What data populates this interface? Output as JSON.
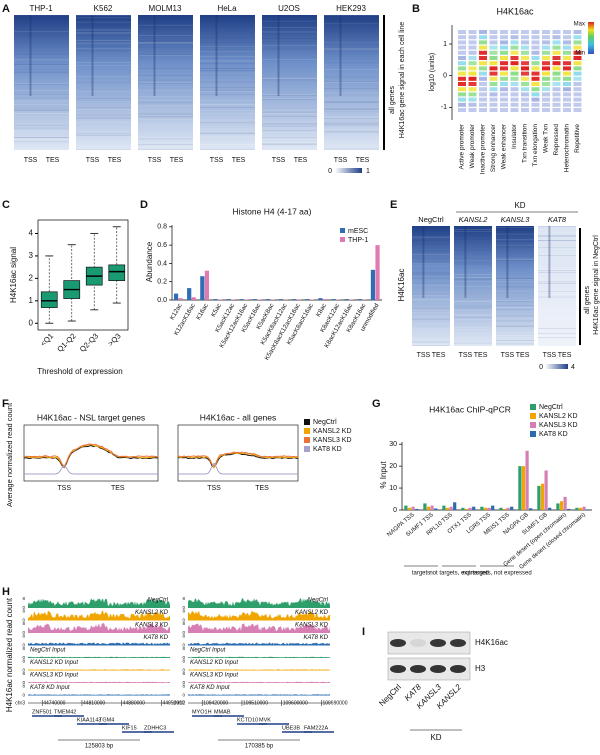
{
  "panels": {
    "A": {
      "letter": "A",
      "columns": [
        "THP-1",
        "K562",
        "MOLM13",
        "HeLa",
        "U2OS",
        "HEK293"
      ],
      "ticks": [
        "TSS",
        "TES"
      ],
      "scale": [
        0,
        1
      ],
      "side": [
        "all genes",
        "H4K16ac gene signal in each cell line"
      ]
    },
    "B": {
      "letter": "B",
      "title": "H4K16ac",
      "ylabel": "log10 (units)",
      "ylim": [
        -1.4,
        1.6
      ],
      "yticks": [
        1,
        0,
        -1
      ],
      "legend": [
        "Max",
        "Min"
      ],
      "categories": [
        "Active promoter",
        "Weak promoter",
        "Inactive promoter",
        "Strong enhancer",
        "Weak enhancer",
        "Insulator",
        "Txn transition",
        "Txn elongation",
        "Weak Txn",
        "Repressed",
        "Heterochromatin",
        "Repetitive"
      ]
    },
    "C": {
      "letter": "C"
    },
    "D": {
      "letter": "D"
    },
    "E": {
      "letter": "E",
      "kd": "KD",
      "columns": [
        "NegCtrl",
        "KANSL2",
        "KANSL3",
        "KAT8"
      ],
      "ylabel": "H4K16ac",
      "ticks": [
        "TSS",
        "TES"
      ],
      "scale": [
        0,
        4
      ],
      "side": [
        "all genes",
        "H4K16ac gene signal in NegCtrl"
      ]
    },
    "F": {
      "letter": "F",
      "titles": [
        "H4K16ac - NSL target genes",
        "H4K16ac - all genes"
      ],
      "ylabel": "Average normalized read count",
      "ticks": [
        "TSS",
        "TES"
      ],
      "series": [
        {
          "name": "NegCtrl",
          "color": "#111111"
        },
        {
          "name": "KANSL2 KD",
          "color": "#f0a500"
        },
        {
          "name": "KANSL3 KD",
          "color": "#e8743b"
        },
        {
          "name": "KAT8 KD",
          "color": "#aaa0cc"
        }
      ]
    },
    "G": {
      "letter": "G"
    },
    "H": {
      "letter": "H",
      "ylabel": "H4K16ac normalized read count",
      "tracks": [
        {
          "name": "NegCtrl",
          "color": "#2e9e6b"
        },
        {
          "name": "KANSL2 KD",
          "color": "#f0a500"
        },
        {
          "name": "KANSL3 KD",
          "color": "#d67fb5"
        },
        {
          "name": "KAT8 KD",
          "color": "#2b6cb0"
        },
        {
          "name": "NegCtrl Input",
          "color": "#2e9e6b"
        },
        {
          "name": "KANSL2 KD Input",
          "color": "#f0a500"
        },
        {
          "name": "KANSL3 KD Input",
          "color": "#d67fb5"
        },
        {
          "name": "KAT8 KD Input",
          "color": "#2b6cb0"
        }
      ],
      "track_scale": [
        8,
        0
      ],
      "loci": [
        {
          "chr": "chr3",
          "coords": [
            44740000,
            44810000,
            44880000,
            44950000
          ],
          "genes": [
            "ZNF501",
            "KIAA1143",
            "KIF15",
            "TMEM42",
            "TGM4",
            "ZDHHC3"
          ],
          "span": "125803 bp"
        },
        {
          "chr": "chr12",
          "coords": [
            109420000,
            109510000,
            109600000,
            109690000
          ],
          "genes": [
            "MYO1H",
            "KCTD10",
            "UBE3B",
            "MMAB",
            "MVK",
            "FAM222A"
          ],
          "span": "170385 bp"
        }
      ]
    },
    "I": {
      "letter": "I",
      "bands": [
        "H4K16ac",
        "H3"
      ],
      "lanes": [
        "NegCtrl",
        "KAT8",
        "KANSL3",
        "KANSL2"
      ],
      "kd": "KD"
    }
  },
  "chart_data": [
    {
      "type": "box",
      "ylabel": "H4K16ac signal",
      "xlabel": "Threshold of expression",
      "categories": [
        "<Q1",
        "Q1-Q2",
        "Q2-Q3",
        ">Q3"
      ],
      "stats": [
        [
          0,
          0.7,
          1.0,
          1.4,
          3.0
        ],
        [
          0.1,
          1.1,
          1.5,
          1.9,
          3.5
        ],
        [
          0.6,
          1.7,
          2.1,
          2.5,
          4.0
        ],
        [
          0.9,
          1.9,
          2.3,
          2.6,
          4.3
        ]
      ],
      "color": "#1a9a73",
      "ylim": [
        -0.3,
        4.6
      ],
      "yticks": [
        0,
        1,
        2,
        3,
        4
      ]
    },
    {
      "type": "bar",
      "title": "Histone H4 (4-17 aa)",
      "ylabel": "Abundance",
      "categories": [
        "K12ac",
        "K12acK16ac",
        "K16ac",
        "K5ac",
        "K5acK12ac",
        "K5acK12acK16ac",
        "K5acK16ac",
        "K5acK8ac",
        "K5acK8acK12ac",
        "K5acK8acK12acK16ac",
        "K5acK8acK16ac",
        "K8ac",
        "K8acK12ac",
        "K8acK12acK16ac",
        "K8acK16ac",
        "unmodified"
      ],
      "series": [
        {
          "name": "mESC",
          "color": "#2f6db5",
          "values": [
            0.07,
            0.13,
            0.26,
            0.01,
            0.01,
            0.01,
            0.01,
            0.01,
            0.01,
            0.01,
            0.01,
            0.02,
            0.01,
            0.01,
            0.01,
            0.33
          ]
        },
        {
          "name": "THP-1",
          "color": "#e07ab0",
          "values": [
            0.02,
            0.03,
            0.32,
            0.005,
            0.005,
            0.005,
            0.005,
            0.005,
            0.005,
            0.005,
            0.005,
            0.01,
            0.005,
            0.005,
            0.005,
            0.6
          ]
        }
      ],
      "ylim": [
        0,
        0.82
      ],
      "yticks": [
        {
          "value": 0,
          "label": "0.0"
        },
        {
          "value": 0.2,
          "label": "0.2"
        },
        {
          "value": 0.4,
          "label": "0.4"
        },
        {
          "value": 0.6,
          "label": "0.6"
        },
        {
          "value": 0.8,
          "label": "0.8"
        }
      ]
    },
    {
      "type": "bar",
      "title": "H4K16ac ChIP-qPCR",
      "ylabel": "% Input",
      "categories": [
        "NAGPA TSS",
        "SUMF1 TSS",
        "RPL10 TSS",
        "OTX1 TSS",
        "LGR5 TSS",
        "MEIS1 TSS",
        "NAGPA GB",
        "SUMF1 GB",
        "Gene desert (open chromatin)",
        "Gene desert (closed chromatin)"
      ],
      "groups": [
        {
          "name": "targets",
          "categories": [
            "NAGPA TSS",
            "SUMF1 TSS"
          ]
        },
        {
          "name": "not targets, expressed",
          "categories": [
            "RPL10 TSS",
            "OTX1 TSS"
          ]
        },
        {
          "name": "not targets, not expressed",
          "categories": [
            "LGR5 TSS",
            "MEIS1 TSS"
          ]
        }
      ],
      "series": [
        {
          "name": "NegCtrl",
          "color": "#2e9e6b",
          "values": [
            2,
            3,
            2,
            1,
            1.5,
            1,
            20,
            11,
            3,
            1
          ]
        },
        {
          "name": "KANSL2 KD",
          "color": "#f0a500",
          "values": [
            1,
            1.5,
            1,
            0.5,
            1,
            0.5,
            20,
            12,
            4,
            1
          ]
        },
        {
          "name": "KANSL3 KD",
          "color": "#d67fb5",
          "values": [
            1.5,
            2,
            1.5,
            1,
            1,
            1,
            27,
            18,
            6,
            1.5
          ]
        },
        {
          "name": "KAT8 KD",
          "color": "#2b6cb0",
          "values": [
            0.5,
            0.7,
            3.5,
            1.5,
            2,
            1.5,
            0.8,
            1,
            0.5,
            0.3
          ]
        }
      ],
      "ylim": [
        0,
        31
      ],
      "yticks": [
        0,
        10,
        20,
        30
      ]
    }
  ]
}
